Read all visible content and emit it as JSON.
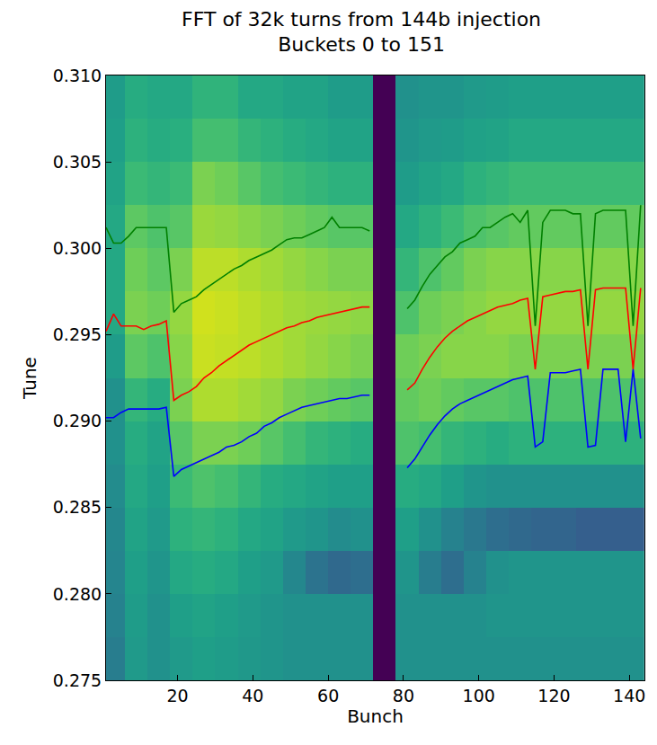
{
  "chart_data": {
    "type": "heatmap",
    "title": "FFT of 32k turns from 144b injection",
    "subtitle": "Buckets 0 to 151",
    "x_label": "Bunch",
    "y_label": "Tune",
    "xlim": [
      1,
      144
    ],
    "xticks": [
      20,
      40,
      60,
      80,
      100,
      120,
      140
    ],
    "ylim": [
      0.275,
      0.31
    ],
    "yticks": [
      0.275,
      {
        "value": 0.28,
        "label": "0.280"
      },
      0.285,
      {
        "value": 0.29,
        "label": "0.290"
      },
      0.295,
      {
        "value": 0.3,
        "label": "0.300"
      },
      0.305,
      {
        "value": 0.31,
        "label": "0.310"
      }
    ],
    "grid": false,
    "heatmap": {
      "x": [
        3,
        9,
        15,
        21,
        27,
        33,
        39,
        45,
        51,
        57,
        63,
        69,
        75,
        81,
        87,
        93,
        99,
        105,
        111,
        117,
        123,
        129,
        135,
        141
      ],
      "y": [
        0.27625,
        0.27875,
        0.28125,
        0.28375,
        0.28625,
        0.28875,
        0.29125,
        0.29375,
        0.29625,
        0.29875,
        0.30125,
        0.30375,
        0.30625,
        0.30875
      ],
      "z": [
        [
          0.42,
          0.54,
          0.5,
          0.54,
          0.56,
          0.55,
          0.53,
          0.52,
          0.5,
          0.5,
          0.5,
          0.5,
          0,
          0.5,
          0.5,
          0.5,
          0.5,
          0.5,
          0.5,
          0.5,
          0.5,
          0.5,
          0.5,
          0.5
        ],
        [
          0.44,
          0.55,
          0.5,
          0.56,
          0.58,
          0.56,
          0.54,
          0.52,
          0.5,
          0.5,
          0.5,
          0.5,
          0,
          0.5,
          0.5,
          0.5,
          0.5,
          0.52,
          0.52,
          0.52,
          0.52,
          0.52,
          0.52,
          0.52
        ],
        [
          0.45,
          0.56,
          0.52,
          0.6,
          0.62,
          0.6,
          0.56,
          0.54,
          0.46,
          0.38,
          0.34,
          0.36,
          0,
          0.52,
          0.42,
          0.36,
          0.44,
          0.5,
          0.52,
          0.52,
          0.52,
          0.52,
          0.52,
          0.52
        ],
        [
          0.46,
          0.58,
          0.54,
          0.64,
          0.66,
          0.64,
          0.6,
          0.58,
          0.54,
          0.52,
          0.48,
          0.5,
          0,
          0.56,
          0.5,
          0.44,
          0.4,
          0.36,
          0.34,
          0.32,
          0.32,
          0.3,
          0.3,
          0.3
        ],
        [
          0.48,
          0.6,
          0.56,
          0.68,
          0.72,
          0.7,
          0.66,
          0.62,
          0.6,
          0.58,
          0.56,
          0.56,
          0,
          0.62,
          0.6,
          0.56,
          0.52,
          0.5,
          0.5,
          0.5,
          0.5,
          0.5,
          0.5,
          0.5
        ],
        [
          0.5,
          0.62,
          0.58,
          0.74,
          0.8,
          0.8,
          0.78,
          0.74,
          0.7,
          0.66,
          0.64,
          0.62,
          0,
          0.72,
          0.7,
          0.66,
          0.64,
          0.62,
          0.64,
          0.64,
          0.64,
          0.64,
          0.64,
          0.64
        ],
        [
          0.5,
          0.66,
          0.62,
          0.8,
          0.88,
          0.88,
          0.86,
          0.84,
          0.8,
          0.78,
          0.76,
          0.74,
          0,
          0.76,
          0.78,
          0.76,
          0.74,
          0.74,
          0.72,
          0.72,
          0.72,
          0.72,
          0.72,
          0.72
        ],
        [
          0.55,
          0.75,
          0.72,
          0.82,
          0.92,
          0.91,
          0.9,
          0.88,
          0.86,
          0.84,
          0.82,
          0.8,
          0,
          0.78,
          0.8,
          0.82,
          0.82,
          0.82,
          0.8,
          0.8,
          0.8,
          0.8,
          0.8,
          0.8
        ],
        [
          0.6,
          0.8,
          0.78,
          0.84,
          0.93,
          0.92,
          0.9,
          0.88,
          0.86,
          0.85,
          0.84,
          0.83,
          0,
          0.72,
          0.78,
          0.8,
          0.82,
          0.84,
          0.84,
          0.84,
          0.84,
          0.84,
          0.84,
          0.84
        ],
        [
          0.6,
          0.78,
          0.75,
          0.8,
          0.9,
          0.9,
          0.88,
          0.86,
          0.84,
          0.82,
          0.8,
          0.8,
          0,
          0.66,
          0.72,
          0.76,
          0.8,
          0.82,
          0.82,
          0.82,
          0.82,
          0.82,
          0.82,
          0.82
        ],
        [
          0.6,
          0.75,
          0.72,
          0.74,
          0.85,
          0.84,
          0.82,
          0.8,
          0.78,
          0.76,
          0.74,
          0.74,
          0,
          0.6,
          0.64,
          0.68,
          0.72,
          0.74,
          0.76,
          0.76,
          0.76,
          0.76,
          0.76,
          0.76
        ],
        [
          0.58,
          0.68,
          0.66,
          0.68,
          0.8,
          0.78,
          0.74,
          0.7,
          0.68,
          0.66,
          0.64,
          0.64,
          0,
          0.55,
          0.58,
          0.6,
          0.64,
          0.66,
          0.68,
          0.68,
          0.68,
          0.68,
          0.68,
          0.68
        ],
        [
          0.56,
          0.64,
          0.62,
          0.63,
          0.7,
          0.7,
          0.66,
          0.64,
          0.62,
          0.6,
          0.58,
          0.58,
          0,
          0.52,
          0.54,
          0.55,
          0.57,
          0.58,
          0.6,
          0.6,
          0.6,
          0.6,
          0.6,
          0.6
        ],
        [
          0.55,
          0.62,
          0.6,
          0.6,
          0.65,
          0.65,
          0.6,
          0.6,
          0.58,
          0.58,
          0.55,
          0.55,
          0,
          0.5,
          0.52,
          0.52,
          0.54,
          0.55,
          0.56,
          0.56,
          0.56,
          0.56,
          0.56,
          0.56
        ]
      ],
      "color_range": [
        0,
        1
      ]
    },
    "x": [
      1,
      3,
      5,
      7,
      9,
      11,
      13,
      15,
      17,
      19,
      21,
      23,
      25,
      27,
      29,
      31,
      33,
      35,
      37,
      39,
      41,
      43,
      45,
      47,
      49,
      51,
      53,
      55,
      57,
      59,
      61,
      63,
      65,
      67,
      69,
      71,
      73,
      75,
      77,
      79,
      81,
      83,
      85,
      87,
      89,
      91,
      93,
      95,
      97,
      99,
      101,
      103,
      105,
      107,
      109,
      111,
      113,
      115,
      117,
      119,
      121,
      123,
      125,
      127,
      129,
      131,
      133,
      135,
      137,
      139,
      141,
      143
    ],
    "series": [
      {
        "type": "line",
        "color": "#008000",
        "values": [
          0.3012,
          0.3003,
          0.3003,
          0.3007,
          0.3012,
          0.3012,
          0.3012,
          0.3012,
          0.3012,
          0.2963,
          0.2968,
          0.297,
          0.2972,
          0.2976,
          0.2979,
          0.2982,
          0.2985,
          0.2988,
          0.299,
          0.2993,
          0.2995,
          0.2997,
          0.2999,
          0.3002,
          0.3005,
          0.3006,
          0.3006,
          0.3008,
          0.301,
          0.3012,
          0.3018,
          0.3012,
          0.3012,
          0.3012,
          0.3012,
          0.301,
          null,
          null,
          null,
          null,
          0.2965,
          0.297,
          0.2978,
          0.2985,
          0.299,
          0.2995,
          0.2998,
          0.3003,
          0.3005,
          0.3007,
          0.3012,
          0.3012,
          0.3015,
          0.3018,
          0.302,
          0.3015,
          0.3022,
          0.2955,
          0.3015,
          0.3022,
          0.3022,
          0.3022,
          0.302,
          0.302,
          0.2955,
          0.302,
          0.3022,
          0.3022,
          0.3022,
          0.3022,
          0.2955,
          0.3025
        ]
      },
      {
        "type": "line",
        "color": "#ff0000",
        "values": [
          0.2952,
          0.2962,
          0.2955,
          0.2955,
          0.2955,
          0.2953,
          0.2955,
          0.2956,
          0.2958,
          0.2912,
          0.2915,
          0.2917,
          0.292,
          0.2925,
          0.2928,
          0.2932,
          0.2935,
          0.2938,
          0.2941,
          0.2944,
          0.2946,
          0.2948,
          0.295,
          0.2952,
          0.2954,
          0.2955,
          0.2957,
          0.2958,
          0.296,
          0.2961,
          0.2962,
          0.2963,
          0.2964,
          0.2965,
          0.2966,
          0.2966,
          null,
          null,
          null,
          null,
          0.2918,
          0.2922,
          0.293,
          0.2937,
          0.2943,
          0.2948,
          0.2952,
          0.2955,
          0.2958,
          0.296,
          0.2962,
          0.2964,
          0.2966,
          0.2967,
          0.2968,
          0.297,
          0.2971,
          0.293,
          0.2972,
          0.2973,
          0.2974,
          0.2975,
          0.2975,
          0.2976,
          0.293,
          0.2976,
          0.2977,
          0.2977,
          0.2977,
          0.2977,
          0.293,
          0.2977
        ]
      },
      {
        "type": "line",
        "color": "#0000ff",
        "values": [
          0.2902,
          0.2902,
          0.2905,
          0.2907,
          0.2907,
          0.2907,
          0.2907,
          0.2907,
          0.2908,
          0.2868,
          0.2872,
          0.2874,
          0.2876,
          0.2878,
          0.288,
          0.2882,
          0.2885,
          0.2886,
          0.2888,
          0.2891,
          0.2893,
          0.2897,
          0.2899,
          0.2902,
          0.2904,
          0.2906,
          0.2908,
          0.2909,
          0.291,
          0.2911,
          0.2912,
          0.2913,
          0.2913,
          0.2914,
          0.2915,
          0.2915,
          null,
          null,
          null,
          null,
          0.2873,
          0.2878,
          0.2885,
          0.2892,
          0.2898,
          0.2903,
          0.2907,
          0.291,
          0.2912,
          0.2914,
          0.2916,
          0.2918,
          0.292,
          0.2922,
          0.2924,
          0.2925,
          0.2926,
          0.2885,
          0.2888,
          0.2928,
          0.2928,
          0.2928,
          0.2929,
          0.293,
          0.2885,
          0.2886,
          0.293,
          0.293,
          0.293,
          0.2888,
          0.293,
          0.289
        ]
      }
    ]
  }
}
